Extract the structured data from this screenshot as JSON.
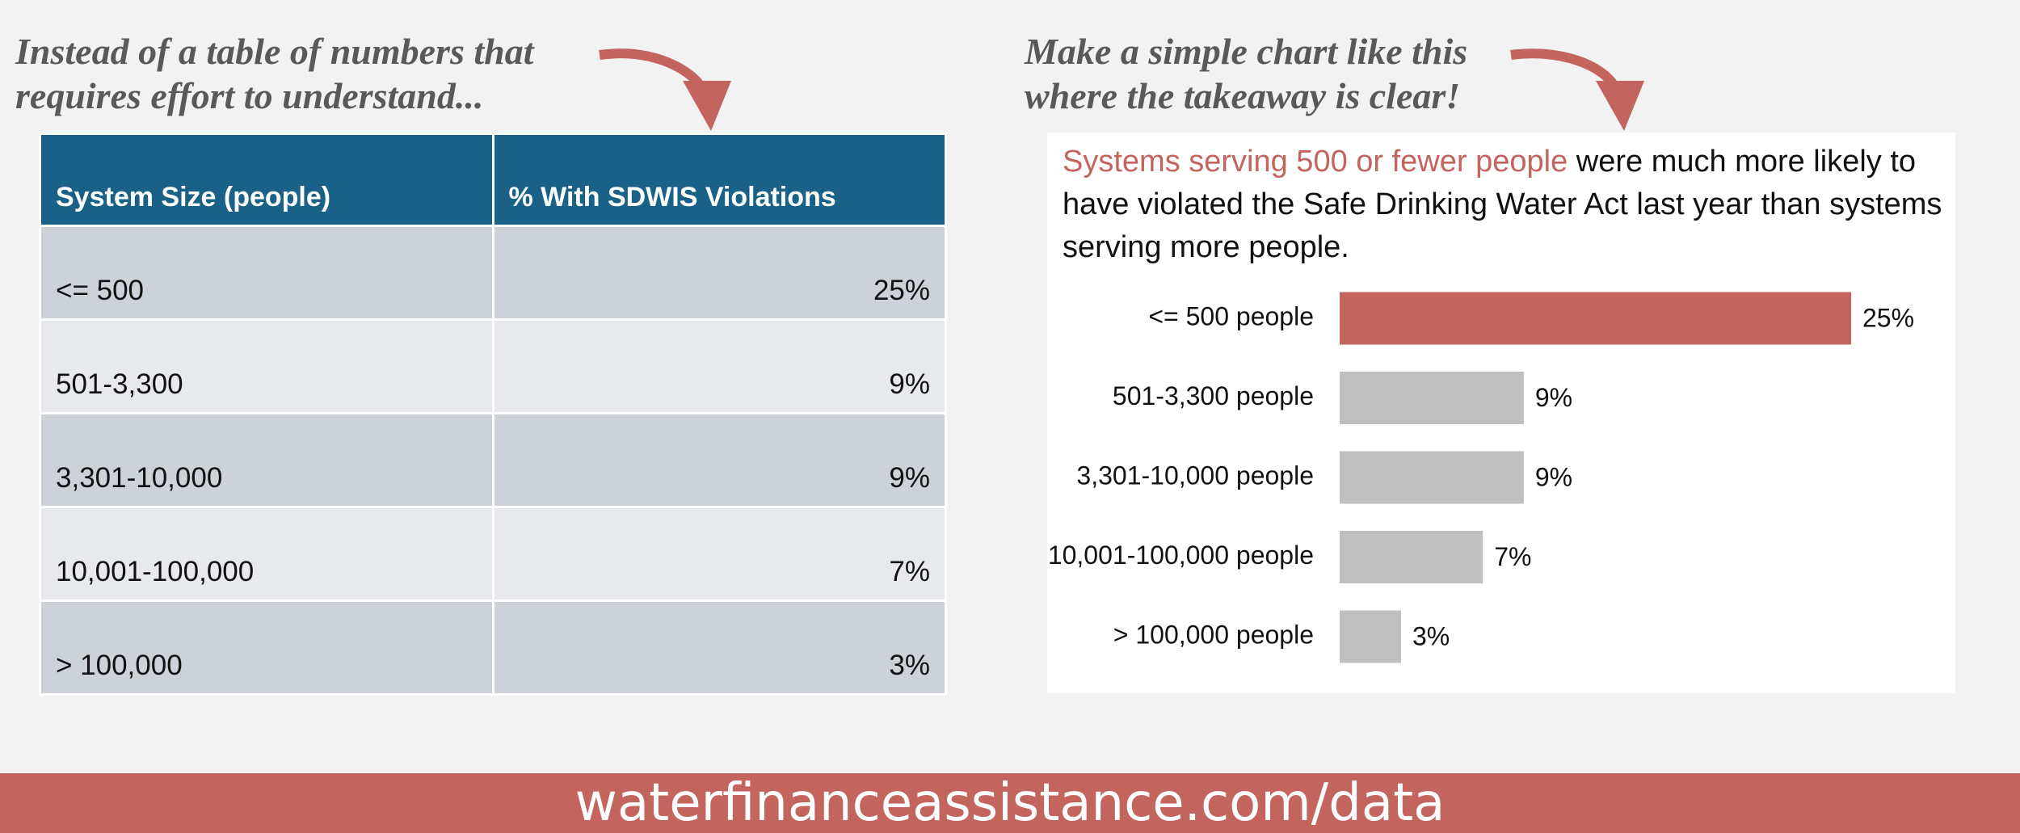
{
  "left_caption": "Instead of a table of numbers that requires effort to understand...",
  "right_caption": "Make a simple chart like this where the takeaway is clear!",
  "table": {
    "header": [
      "System Size (people)",
      "% With SDWIS Violations"
    ],
    "rows": [
      [
        "<= 500",
        "25%"
      ],
      [
        "501-3,300",
        "9%"
      ],
      [
        "3,301-10,000",
        "9%"
      ],
      [
        "10,001-100,000",
        "7%"
      ],
      [
        "> 100,000",
        "3%"
      ]
    ]
  },
  "chart_data": {
    "type": "bar",
    "orientation": "horizontal",
    "title_highlight": "Systems serving 500 or fewer people",
    "title": "were much more likely to have violated the Safe Drinking Water Act last year than systems serving more people.",
    "highlight_color": "#c4645f",
    "categories": [
      "<= 500 people",
      "501-3,300 people",
      "3,301-10,000 people",
      "10,001-100,000 people",
      "> 100,000 people"
    ],
    "values": [
      25,
      9,
      9,
      7,
      3
    ],
    "value_labels": [
      "25%",
      "9%",
      "9%",
      "7%",
      "3%"
    ],
    "colors": [
      "#c4645f",
      "#bfbfbf",
      "#bfbfbf",
      "#bfbfbf",
      "#bfbfbf"
    ]
  },
  "footer": "waterfinanceassistance.com/data"
}
